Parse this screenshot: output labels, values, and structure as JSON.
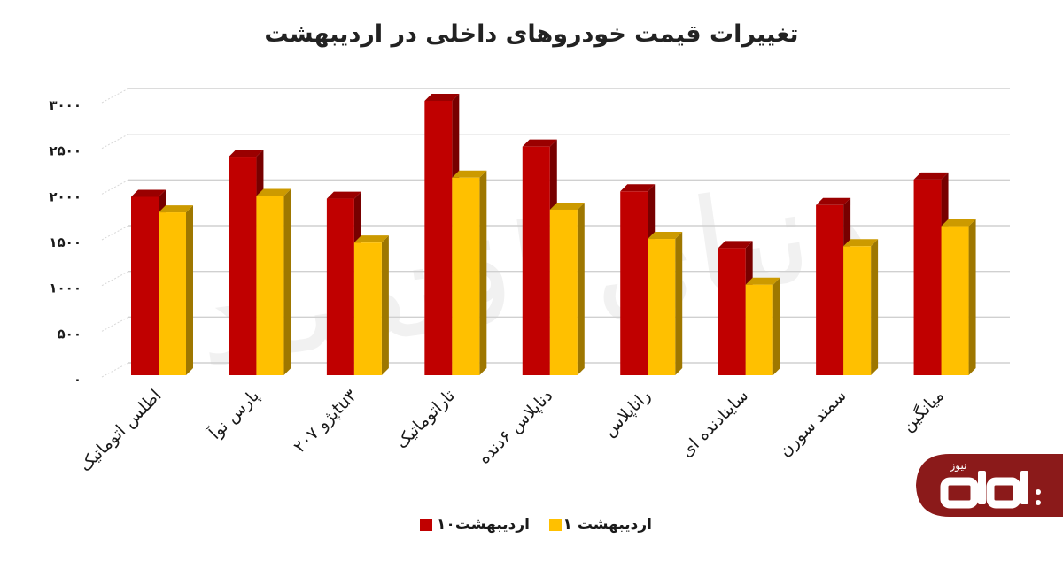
{
  "chart_data": {
    "type": "bar",
    "title": "تغییرات قیمت خودروهای داخلی در اردیبهشت",
    "categories": [
      "اطلس اتوماتیک",
      "پارس نوآ",
      "پژو ۲۰۷tu۳",
      "تاراتوماتیک",
      "دناپلاس ۶دنده",
      "راناپلاس",
      "ساینادنده ای",
      "سمند سورن",
      "میانگین"
    ],
    "series": [
      {
        "name": "۱۰اردیبهشت",
        "color": "#c00000",
        "values": [
          1950,
          2390,
          1930,
          3000,
          2500,
          2010,
          1390,
          1860,
          2140
        ]
      },
      {
        "name": "۱ اردیبهشت",
        "color": "#ffc000",
        "values": [
          1780,
          1960,
          1450,
          2160,
          1810,
          1490,
          990,
          1410,
          1630
        ]
      }
    ],
    "y_ticks": [
      "۰",
      "۵۰۰",
      "۱۰۰۰",
      "۱۵۰۰",
      "۲۰۰۰",
      "۲۵۰۰",
      "۳۰۰۰"
    ],
    "ylim": [
      0,
      3000
    ],
    "grid": true,
    "legend_position": "bottom"
  },
  "logo": {
    "text": "نیوز",
    "wordmark": "دنیای اقتصاد",
    "color": "#8b1a1a"
  }
}
